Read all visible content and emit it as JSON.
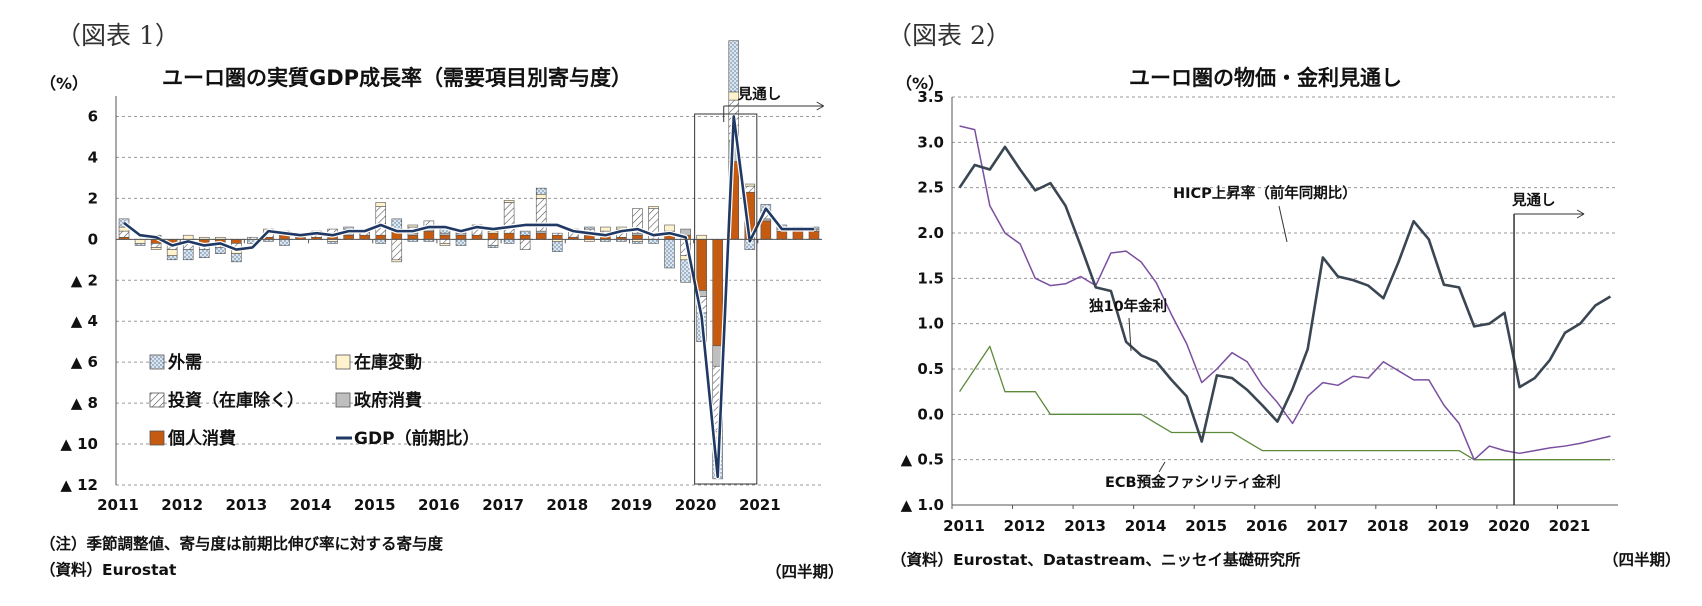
{
  "figure1": {
    "label": "（図表 1）",
    "unit": "（%）",
    "note": "（注）季節調整値、寄与度は前期比伸び率に対する寄与度",
    "source": "（資料）Eurostat",
    "period": "（四半期）",
    "chart_data": {
      "type": "bar",
      "title": "ユーロ圏の実質GDP成長率（需要項目別寄与度）",
      "xlabel": "",
      "ylabel": "（%）",
      "ylim": [
        -12,
        7
      ],
      "yticks": [
        6,
        4,
        2,
        0,
        -2,
        -4,
        -6,
        -8,
        -10,
        -12
      ],
      "ytick_labels": [
        "6",
        "4",
        "2",
        "0",
        "▲ 2",
        "▲ 4",
        "▲ 6",
        "▲ 8",
        "▲ 10",
        "▲ 12"
      ],
      "xtick_labels": [
        "2011",
        "2012",
        "2013",
        "2014",
        "2015",
        "2016",
        "2017",
        "2018",
        "2019",
        "2020",
        "2021"
      ],
      "start_year": 2011,
      "quarters": 44,
      "forecast_label": "見通し",
      "forecast_start_index": 38,
      "series": [
        {
          "name": "外需",
          "color": "#dce6f1",
          "pattern": "dots",
          "values": [
            0.4,
            -0.1,
            0.2,
            -0.2,
            -0.5,
            -0.4,
            -0.3,
            -0.4,
            -0.2,
            -0.1,
            -0.3,
            0.0,
            0.1,
            -0.1,
            0.1,
            0.1,
            -0.2,
            0.5,
            -0.1,
            -0.1,
            0.3,
            -0.3,
            0.2,
            -0.1,
            -0.2,
            0.2,
            0.3,
            -0.5,
            0.0,
            0.1,
            -0.1,
            -0.1,
            -0.1,
            -0.2,
            -1.4,
            -1.1,
            -1.4,
            -2.0,
            2.5,
            -0.5,
            0.3,
            0.2,
            0.1,
            0.1
          ]
        },
        {
          "name": "在庫変動",
          "color": "#fff2cc",
          "pattern": "solid",
          "values": [
            0.2,
            -0.2,
            -0.1,
            -0.3,
            0.2,
            0.1,
            0.1,
            -0.2,
            0.0,
            0.2,
            0.1,
            0.1,
            0.1,
            -0.1,
            0.1,
            0.0,
            0.2,
            -0.1,
            0.1,
            0.0,
            -0.1,
            0.1,
            0.0,
            0.1,
            0.1,
            0.0,
            0.2,
            -0.1,
            0.1,
            -0.1,
            0.2,
            0.1,
            -0.1,
            0.1,
            0.3,
            -0.2,
            0.2,
            -0.3,
            0.4,
            0.1,
            0.1,
            0.0,
            0.0,
            0.0
          ]
        },
        {
          "name": "投資（在庫除く）",
          "color": "#ffffff",
          "pattern": "hatch",
          "values": [
            0.3,
            0.0,
            -0.2,
            -0.3,
            -0.3,
            -0.2,
            -0.1,
            -0.3,
            0.1,
            0.2,
            0.1,
            0.1,
            0.1,
            0.2,
            0.1,
            0.2,
            1.4,
            -1.0,
            0.3,
            0.4,
            -0.2,
            0.1,
            0.3,
            -0.3,
            1.5,
            -0.5,
            1.6,
            0.1,
            0.3,
            0.2,
            0.2,
            0.4,
            1.2,
            1.5,
            0.2,
            -0.8,
            -0.8,
            -3.2,
            2.0,
            0.3,
            0.3,
            0.1,
            0.1,
            0.1
          ]
        },
        {
          "name": "政府消費",
          "color": "#bfbfbf",
          "pattern": "solid",
          "values": [
            0.0,
            0.0,
            0.0,
            0.0,
            0.0,
            0.0,
            0.0,
            0.0,
            0.0,
            0.0,
            0.0,
            0.0,
            0.0,
            0.0,
            0.1,
            0.0,
            0.0,
            0.1,
            0.1,
            0.1,
            0.1,
            0.1,
            0.0,
            0.0,
            0.0,
            0.0,
            0.1,
            0.0,
            0.0,
            0.1,
            0.0,
            0.0,
            0.1,
            0.0,
            0.0,
            0.3,
            -0.3,
            -1.0,
            1.0,
            0.0,
            0.1,
            0.0,
            0.0,
            0.0
          ]
        },
        {
          "name": "個人消費",
          "color": "#c55a11",
          "pattern": "solid",
          "values": [
            0.1,
            0.0,
            -0.2,
            -0.2,
            -0.2,
            -0.3,
            -0.3,
            -0.2,
            0.0,
            0.1,
            0.2,
            0.1,
            0.1,
            0.3,
            0.2,
            0.2,
            0.2,
            0.4,
            0.2,
            0.4,
            0.2,
            0.2,
            0.2,
            0.3,
            0.3,
            0.2,
            0.3,
            0.2,
            0.1,
            0.2,
            0.2,
            0.1,
            0.2,
            0.0,
            0.2,
            0.2,
            -2.5,
            -5.2,
            3.8,
            2.3,
            0.9,
            0.4,
            0.4,
            0.4
          ]
        },
        {
          "name": "GDP（前期比）",
          "color": "#1f3864",
          "pattern": "line",
          "values": [
            0.8,
            0.2,
            0.1,
            -0.3,
            -0.1,
            -0.3,
            -0.2,
            -0.5,
            -0.4,
            0.4,
            0.3,
            0.2,
            0.3,
            0.2,
            0.4,
            0.4,
            0.7,
            0.4,
            0.4,
            0.6,
            0.6,
            0.4,
            0.6,
            0.5,
            0.6,
            0.7,
            0.7,
            0.7,
            0.4,
            0.3,
            0.2,
            0.4,
            0.5,
            0.2,
            0.3,
            0.1,
            -3.8,
            -11.6,
            6.0,
            -0.1,
            1.5,
            0.5,
            0.5,
            0.5
          ]
        }
      ]
    }
  },
  "figure2": {
    "label": "（図表 2）",
    "unit": "（%）",
    "source": "（資料）Eurostat、Datastream、ニッセイ基礎研究所",
    "period": "（四半期）",
    "chart_data": {
      "type": "line",
      "title": "ユーロ圏の物価・金利見通し",
      "xlabel": "",
      "ylabel": "（%）",
      "ylim": [
        -1.0,
        3.5
      ],
      "yticks": [
        3.5,
        3.0,
        2.5,
        2.0,
        1.5,
        1.0,
        0.5,
        0.0,
        -0.5,
        -1.0
      ],
      "ytick_labels": [
        "3.5",
        "3.0",
        "2.5",
        "2.0",
        "1.5",
        "1.0",
        "0.5",
        "0.0",
        "▲ 0.5",
        "▲ 1.0"
      ],
      "xtick_labels": [
        "2011",
        "2012",
        "2013",
        "2014",
        "2015",
        "2016",
        "2017",
        "2018",
        "2019",
        "2020",
        "2021"
      ],
      "start_year": 2011,
      "quarters": 44,
      "forecast_label": "見通し",
      "forecast_start_index": 37,
      "series": [
        {
          "name": "HICP上昇率（前年同期比）",
          "color": "#3b4653",
          "width": 2.6,
          "values": [
            2.5,
            2.75,
            2.7,
            2.95,
            2.7,
            2.47,
            2.55,
            2.3,
            1.86,
            1.4,
            1.36,
            0.8,
            0.65,
            0.58,
            0.38,
            0.2,
            -0.3,
            0.43,
            0.4,
            0.27,
            0.1,
            -0.08,
            0.28,
            0.72,
            1.73,
            1.52,
            1.48,
            1.42,
            1.28,
            1.68,
            2.13,
            1.93,
            1.43,
            1.4,
            0.97,
            1.0,
            1.12,
            0.3,
            0.4,
            0.6,
            0.9,
            1.0,
            1.2,
            1.3
          ]
        },
        {
          "name": "独10年金利",
          "color": "#7a4fa0",
          "width": 1.5,
          "values": [
            3.18,
            3.14,
            2.3,
            2.0,
            1.88,
            1.5,
            1.42,
            1.44,
            1.52,
            1.42,
            1.78,
            1.8,
            1.68,
            1.45,
            1.1,
            0.78,
            0.35,
            0.5,
            0.68,
            0.58,
            0.32,
            0.13,
            -0.1,
            0.2,
            0.35,
            0.32,
            0.42,
            0.4,
            0.58,
            0.48,
            0.38,
            0.38,
            0.1,
            -0.1,
            -0.5,
            -0.35,
            -0.4,
            -0.43,
            -0.4,
            -0.37,
            -0.35,
            -0.32,
            -0.28,
            -0.24
          ]
        },
        {
          "name": "ECB預金ファシリティ金利",
          "color": "#5b8a3a",
          "width": 1.3,
          "values": [
            0.25,
            0.5,
            0.75,
            0.25,
            0.25,
            0.25,
            0.0,
            0.0,
            0.0,
            0.0,
            0.0,
            0.0,
            0.0,
            -0.1,
            -0.2,
            -0.2,
            -0.2,
            -0.2,
            -0.2,
            -0.3,
            -0.4,
            -0.4,
            -0.4,
            -0.4,
            -0.4,
            -0.4,
            -0.4,
            -0.4,
            -0.4,
            -0.4,
            -0.4,
            -0.4,
            -0.4,
            -0.4,
            -0.5,
            -0.5,
            -0.5,
            -0.5,
            -0.5,
            -0.5,
            -0.5,
            -0.5,
            -0.5,
            -0.5
          ]
        }
      ]
    }
  }
}
